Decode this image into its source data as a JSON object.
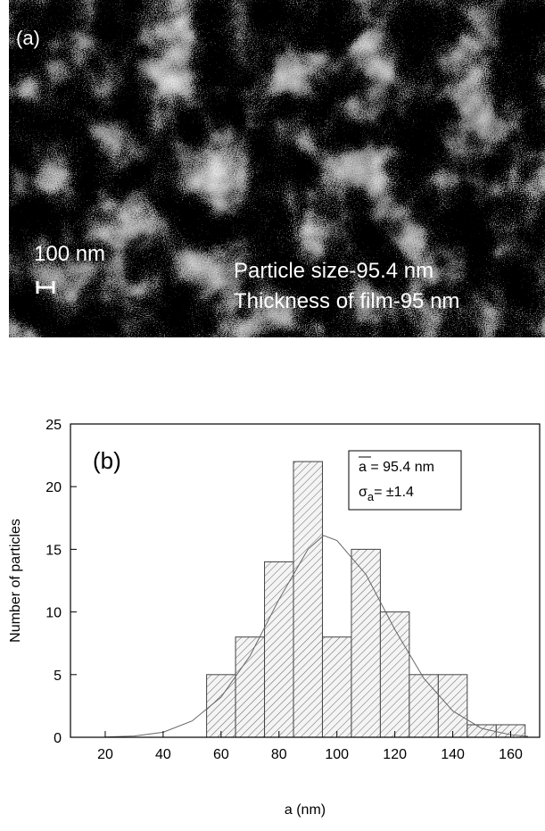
{
  "image_panel": {
    "label": "(a)",
    "scale_bar": "100 nm",
    "caption_lines": [
      "Particle size-95.4 nm",
      "Thickness of film-95 nm"
    ]
  },
  "chart_data": {
    "type": "histogram",
    "panel_label": "(b)",
    "xlabel": "a (nm)",
    "ylabel": "Number of particles",
    "bins": [
      55,
      65,
      75,
      85,
      95,
      105,
      115,
      125,
      135,
      145,
      155,
      165
    ],
    "values": [
      5,
      8,
      14,
      22,
      8,
      15,
      10,
      5,
      5,
      1,
      1
    ],
    "color": "#555555",
    "xlim": [
      8,
      170
    ],
    "ylim": [
      0,
      25
    ],
    "xticks": [
      20,
      40,
      60,
      80,
      100,
      120,
      140,
      160
    ],
    "yticks": [
      0,
      5,
      10,
      15,
      20,
      25
    ],
    "fit": {
      "x": [
        20,
        30,
        40,
        50,
        60,
        70,
        80,
        90,
        95.4,
        100,
        110,
        120,
        130,
        140,
        150,
        160,
        166
      ],
      "values": [
        0.02,
        0.1,
        0.4,
        1.3,
        3.2,
        6.5,
        11,
        15,
        16.1,
        15.7,
        13,
        8.6,
        4.7,
        2.1,
        0.7,
        0.2,
        0.07
      ]
    },
    "legend": {
      "mean_symbol": "a",
      "mean_text": " = 95.4 nm",
      "sigma_symbol": "σ",
      "sigma_sub": "a",
      "sigma_text": "= ±1.4"
    }
  }
}
